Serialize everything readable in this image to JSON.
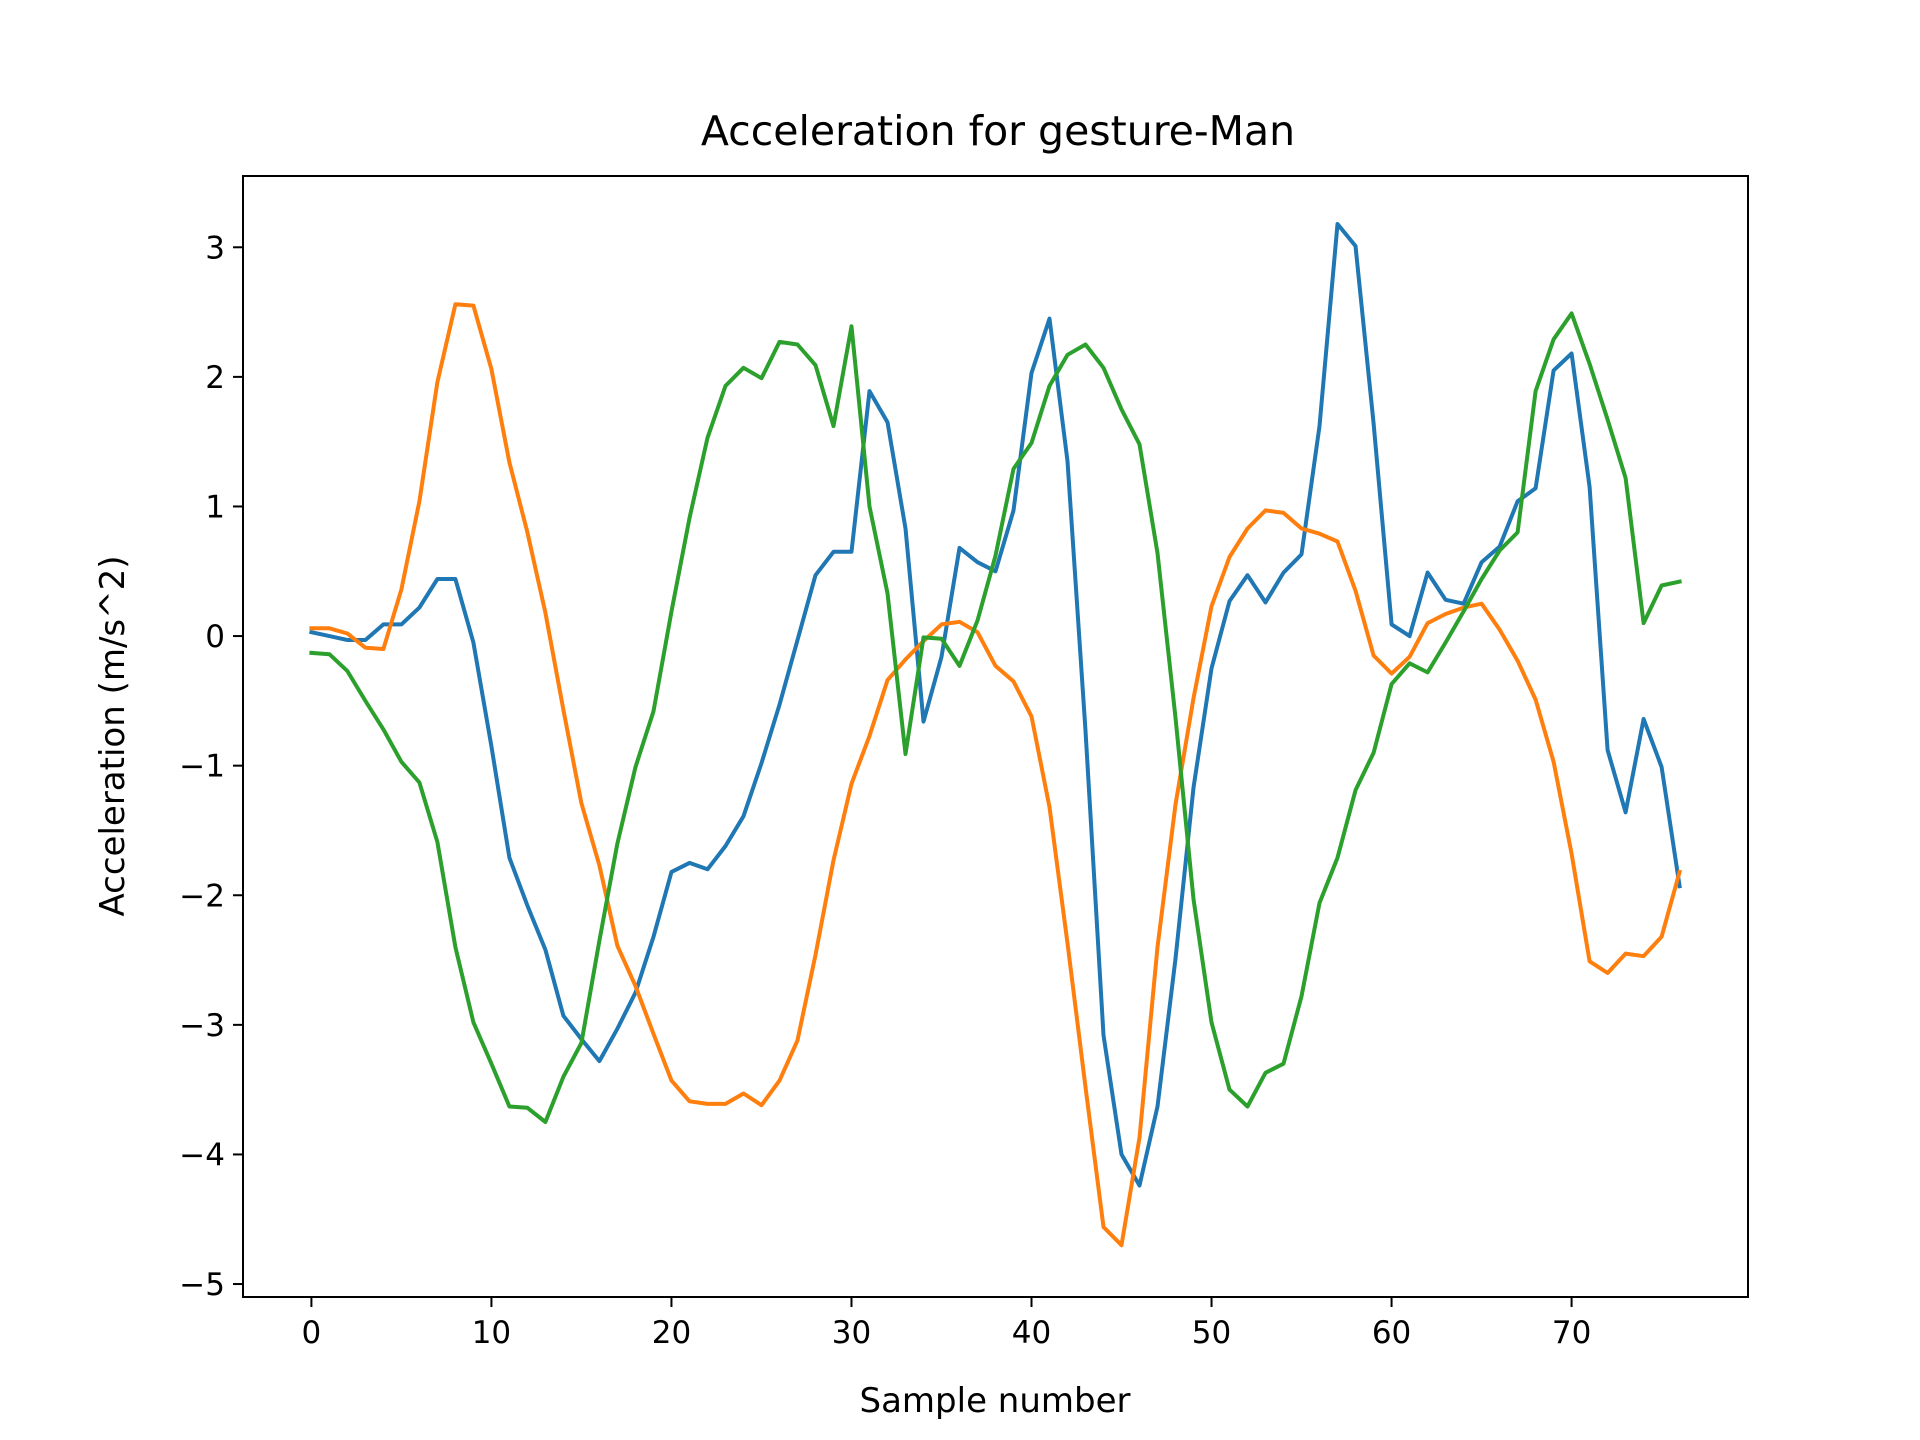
{
  "chart_data": {
    "type": "line",
    "title": "Acceleration for gesture-Man",
    "xlabel": "Sample number",
    "ylabel": "Acceleration (m/s^2)",
    "xlim": [
      -3.8,
      79.8
    ],
    "ylim": [
      -5.1,
      3.55
    ],
    "xticks": [
      0,
      10,
      20,
      30,
      40,
      50,
      60,
      70
    ],
    "yticks": [
      -5,
      -4,
      -3,
      -2,
      -1,
      0,
      1,
      2,
      3
    ],
    "grid": false,
    "legend": "none",
    "x": [
      0,
      1,
      2,
      3,
      4,
      5,
      6,
      7,
      8,
      9,
      10,
      11,
      12,
      13,
      14,
      15,
      16,
      17,
      18,
      19,
      20,
      21,
      22,
      23,
      24,
      25,
      26,
      27,
      28,
      29,
      30,
      31,
      32,
      33,
      34,
      35,
      36,
      37,
      38,
      39,
      40,
      41,
      42,
      43,
      44,
      45,
      46,
      47,
      48,
      49,
      50,
      51,
      52,
      53,
      54,
      55,
      56,
      57,
      58,
      59,
      60,
      61,
      62,
      63,
      64,
      65,
      66,
      67,
      68,
      69,
      70,
      71,
      72,
      73,
      74,
      75,
      76
    ],
    "series": [
      {
        "color": "#1f77b4",
        "values": [
          0.03,
          0.0,
          -0.03,
          -0.03,
          0.09,
          0.09,
          0.22,
          0.44,
          0.44,
          -0.05,
          -0.85,
          -1.71,
          -2.08,
          -2.42,
          -2.93,
          -3.11,
          -3.28,
          -3.03,
          -2.75,
          -2.32,
          -1.82,
          -1.75,
          -1.8,
          -1.62,
          -1.39,
          -0.98,
          -0.53,
          -0.03,
          0.47,
          0.65,
          0.65,
          1.89,
          1.65,
          0.83,
          -0.66,
          -0.16,
          0.68,
          0.57,
          0.5,
          0.97,
          2.03,
          2.45,
          1.35,
          -0.73,
          -3.08,
          -4.0,
          -4.24,
          -3.63,
          -2.49,
          -1.17,
          -0.25,
          0.27,
          0.47,
          0.26,
          0.49,
          0.63,
          1.62,
          3.18,
          3.01,
          1.64,
          0.09,
          0.0,
          0.49,
          0.28,
          0.25,
          0.57,
          0.69,
          1.04,
          1.14,
          2.05,
          2.18,
          1.15,
          -0.88,
          -1.36,
          -0.64,
          -1.01,
          -1.93
        ]
      },
      {
        "color": "#ff7f0e",
        "values": [
          0.06,
          0.06,
          0.02,
          -0.09,
          -0.1,
          0.36,
          1.04,
          1.96,
          2.56,
          2.55,
          2.06,
          1.34,
          0.8,
          0.18,
          -0.57,
          -1.29,
          -1.77,
          -2.39,
          -2.7,
          -3.07,
          -3.43,
          -3.59,
          -3.61,
          -3.61,
          -3.53,
          -3.62,
          -3.43,
          -3.12,
          -2.46,
          -1.73,
          -1.14,
          -0.77,
          -0.34,
          -0.18,
          -0.04,
          0.09,
          0.11,
          0.03,
          -0.23,
          -0.35,
          -0.62,
          -1.32,
          -2.37,
          -3.48,
          -4.56,
          -4.7,
          -3.87,
          -2.4,
          -1.3,
          -0.48,
          0.23,
          0.61,
          0.83,
          0.97,
          0.95,
          0.83,
          0.79,
          0.73,
          0.35,
          -0.15,
          -0.29,
          -0.16,
          0.1,
          0.17,
          0.22,
          0.25,
          0.05,
          -0.19,
          -0.49,
          -0.97,
          -1.68,
          -2.51,
          -2.6,
          -2.45,
          -2.47,
          -2.32,
          -1.82
        ]
      },
      {
        "color": "#2ca02c",
        "values": [
          -0.13,
          -0.14,
          -0.27,
          -0.5,
          -0.72,
          -0.97,
          -1.13,
          -1.59,
          -2.4,
          -2.98,
          -3.3,
          -3.63,
          -3.64,
          -3.75,
          -3.4,
          -3.14,
          -2.35,
          -1.6,
          -1.01,
          -0.58,
          0.19,
          0.91,
          1.53,
          1.93,
          2.07,
          1.99,
          2.27,
          2.25,
          2.09,
          1.62,
          2.39,
          1.0,
          0.33,
          -0.91,
          -0.01,
          -0.02,
          -0.23,
          0.12,
          0.62,
          1.29,
          1.49,
          1.93,
          2.17,
          2.25,
          2.07,
          1.75,
          1.48,
          0.64,
          -0.63,
          -2.03,
          -2.98,
          -3.5,
          -3.63,
          -3.37,
          -3.3,
          -2.78,
          -2.06,
          -1.71,
          -1.19,
          -0.9,
          -0.37,
          -0.21,
          -0.28,
          -0.05,
          0.19,
          0.44,
          0.66,
          0.8,
          1.89,
          2.29,
          2.49,
          2.1,
          1.67,
          1.22,
          0.1,
          0.39,
          0.42
        ]
      }
    ]
  }
}
